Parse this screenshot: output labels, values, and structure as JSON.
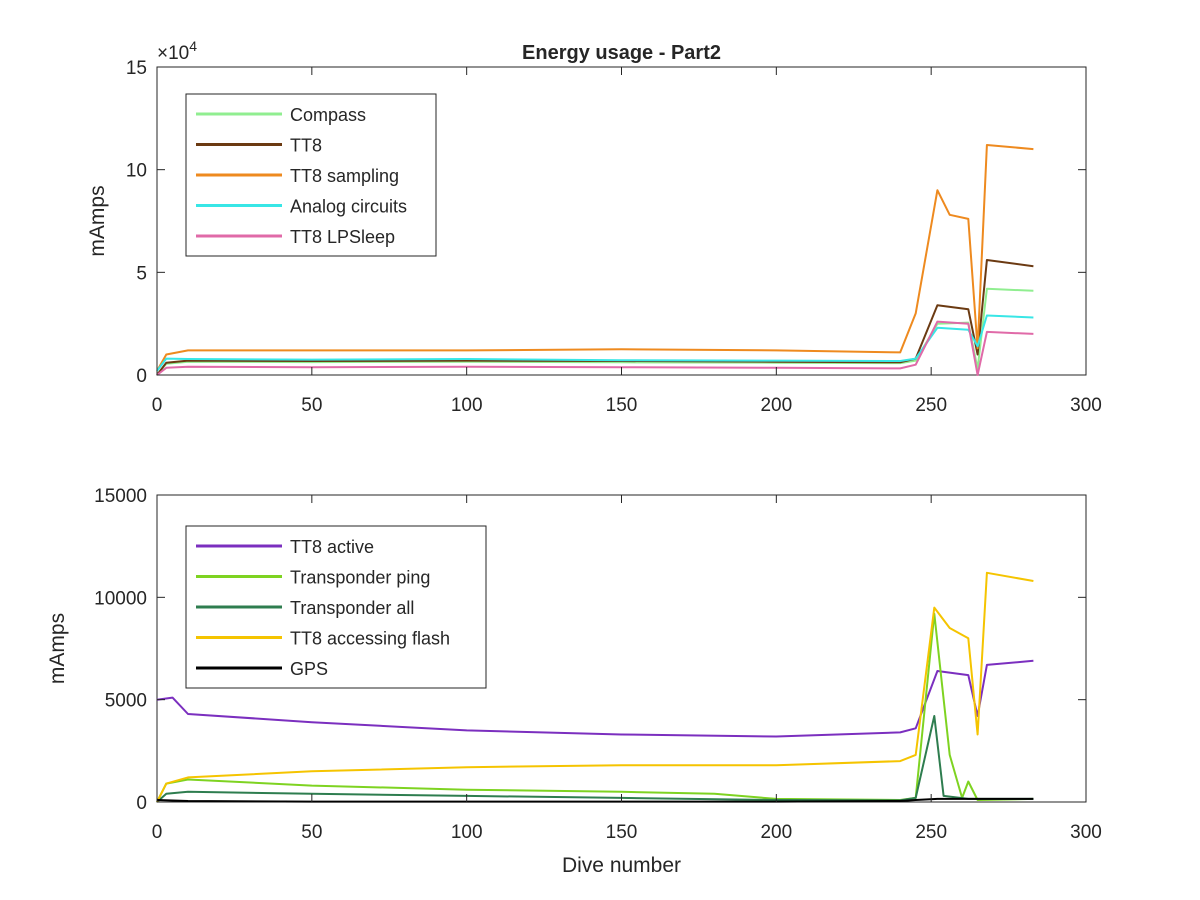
{
  "figure": {
    "background": "#ffffff"
  },
  "chart_data": [
    {
      "type": "line",
      "title": "Energy usage - Part2",
      "xlabel": "",
      "ylabel": "mAmps",
      "xlim": [
        0,
        300
      ],
      "ylim": [
        0,
        150000
      ],
      "x_ticks": [
        0,
        50,
        100,
        150,
        200,
        250,
        300
      ],
      "y_ticks": [
        0,
        50000,
        100000,
        150000
      ],
      "y_tick_labels": [
        "0",
        "5",
        "10",
        "15"
      ],
      "y_exponent_label": "×10",
      "y_exponent_power": "4",
      "grid": false,
      "legend_position": "top-left",
      "series": [
        {
          "name": "Compass",
          "color": "#90ee90",
          "points": [
            [
              0,
              0
            ],
            [
              3,
              5500
            ],
            [
              10,
              6500
            ],
            [
              50,
              6300
            ],
            [
              100,
              6500
            ],
            [
              150,
              6200
            ],
            [
              200,
              6000
            ],
            [
              240,
              5800
            ],
            [
              245,
              7000
            ],
            [
              252,
              25000
            ],
            [
              262,
              25500
            ],
            [
              265,
              3000
            ],
            [
              268,
              42000
            ],
            [
              283,
              41000
            ]
          ]
        },
        {
          "name": "TT8",
          "color": "#6b3a12",
          "points": [
            [
              0,
              0
            ],
            [
              3,
              6000
            ],
            [
              10,
              7000
            ],
            [
              50,
              6800
            ],
            [
              100,
              7000
            ],
            [
              150,
              6800
            ],
            [
              200,
              6500
            ],
            [
              240,
              6200
            ],
            [
              245,
              8000
            ],
            [
              252,
              34000
            ],
            [
              262,
              32000
            ],
            [
              265,
              10000
            ],
            [
              268,
              56000
            ],
            [
              283,
              53000
            ]
          ]
        },
        {
          "name": "TT8 sampling",
          "color": "#ee8a1f",
          "points": [
            [
              0,
              2000
            ],
            [
              3,
              10000
            ],
            [
              10,
              12000
            ],
            [
              50,
              12000
            ],
            [
              100,
              12000
            ],
            [
              150,
              12500
            ],
            [
              200,
              12000
            ],
            [
              240,
              11000
            ],
            [
              245,
              30000
            ],
            [
              252,
              90000
            ],
            [
              256,
              78000
            ],
            [
              262,
              76000
            ],
            [
              265,
              13000
            ],
            [
              268,
              112000
            ],
            [
              283,
              110000
            ]
          ]
        },
        {
          "name": "Analog circuits",
          "color": "#38e6e6",
          "points": [
            [
              0,
              2000
            ],
            [
              3,
              8000
            ],
            [
              10,
              7800
            ],
            [
              50,
              7500
            ],
            [
              100,
              7800
            ],
            [
              150,
              7200
            ],
            [
              200,
              7000
            ],
            [
              240,
              6800
            ],
            [
              245,
              8000
            ],
            [
              252,
              23000
            ],
            [
              262,
              22000
            ],
            [
              265,
              14000
            ],
            [
              268,
              29000
            ],
            [
              283,
              28000
            ]
          ]
        },
        {
          "name": "TT8 LPSleep",
          "color": "#e06aa8",
          "points": [
            [
              0,
              0
            ],
            [
              3,
              3500
            ],
            [
              10,
              4000
            ],
            [
              50,
              3800
            ],
            [
              100,
              4000
            ],
            [
              150,
              3800
            ],
            [
              200,
              3500
            ],
            [
              240,
              3200
            ],
            [
              245,
              5000
            ],
            [
              252,
              26000
            ],
            [
              262,
              25000
            ],
            [
              265,
              0
            ],
            [
              268,
              21000
            ],
            [
              283,
              20000
            ]
          ]
        }
      ]
    },
    {
      "type": "line",
      "title": "",
      "xlabel": "Dive number",
      "ylabel": "mAmps",
      "xlim": [
        0,
        300
      ],
      "ylim": [
        0,
        15000
      ],
      "x_ticks": [
        0,
        50,
        100,
        150,
        200,
        250,
        300
      ],
      "y_ticks": [
        0,
        5000,
        10000,
        15000
      ],
      "y_tick_labels": [
        "0",
        "5000",
        "10000",
        "15000"
      ],
      "grid": false,
      "legend_position": "top-left",
      "series": [
        {
          "name": "TT8 active",
          "color": "#7b2fbf",
          "points": [
            [
              0,
              5000
            ],
            [
              5,
              5100
            ],
            [
              10,
              4300
            ],
            [
              50,
              3900
            ],
            [
              100,
              3500
            ],
            [
              150,
              3300
            ],
            [
              200,
              3200
            ],
            [
              240,
              3400
            ],
            [
              245,
              3600
            ],
            [
              252,
              6400
            ],
            [
              262,
              6200
            ],
            [
              265,
              4200
            ],
            [
              268,
              6700
            ],
            [
              283,
              6900
            ]
          ]
        },
        {
          "name": "Transponder ping",
          "color": "#7ed321",
          "points": [
            [
              0,
              0
            ],
            [
              3,
              900
            ],
            [
              10,
              1100
            ],
            [
              50,
              800
            ],
            [
              100,
              600
            ],
            [
              150,
              500
            ],
            [
              180,
              400
            ],
            [
              200,
              150
            ],
            [
              240,
              100
            ],
            [
              245,
              200
            ],
            [
              251,
              9200
            ],
            [
              256,
              2300
            ],
            [
              260,
              200
            ],
            [
              262,
              1000
            ],
            [
              265,
              100
            ],
            [
              283,
              150
            ]
          ]
        },
        {
          "name": "Transponder all",
          "color": "#2e7d4f",
          "points": [
            [
              0,
              0
            ],
            [
              3,
              400
            ],
            [
              10,
              500
            ],
            [
              50,
              400
            ],
            [
              100,
              300
            ],
            [
              150,
              200
            ],
            [
              200,
              100
            ],
            [
              240,
              80
            ],
            [
              245,
              200
            ],
            [
              251,
              4200
            ],
            [
              254,
              300
            ],
            [
              262,
              150
            ],
            [
              283,
              150
            ]
          ]
        },
        {
          "name": "TT8 accessing flash",
          "color": "#f5c400",
          "points": [
            [
              0,
              0
            ],
            [
              3,
              900
            ],
            [
              10,
              1200
            ],
            [
              50,
              1500
            ],
            [
              100,
              1700
            ],
            [
              150,
              1800
            ],
            [
              200,
              1800
            ],
            [
              240,
              2000
            ],
            [
              245,
              2300
            ],
            [
              251,
              9500
            ],
            [
              256,
              8500
            ],
            [
              262,
              8000
            ],
            [
              265,
              3300
            ],
            [
              268,
              11200
            ],
            [
              283,
              10800
            ]
          ]
        },
        {
          "name": "GPS",
          "color": "#000000",
          "points": [
            [
              0,
              100
            ],
            [
              10,
              50
            ],
            [
              50,
              20
            ],
            [
              100,
              20
            ],
            [
              150,
              20
            ],
            [
              200,
              20
            ],
            [
              240,
              50
            ],
            [
              245,
              100
            ],
            [
              252,
              150
            ],
            [
              262,
              150
            ],
            [
              283,
              150
            ]
          ]
        }
      ]
    }
  ]
}
